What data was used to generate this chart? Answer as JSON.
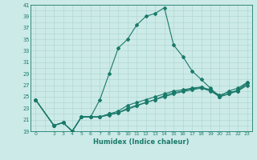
{
  "xlabel": "Humidex (Indice chaleur)",
  "bg_color": "#cceae8",
  "grid_color": "#aad4d0",
  "line_color": "#1a7a6a",
  "xmin": 0,
  "xmax": 23,
  "ymin": 19,
  "ymax": 41,
  "yticks": [
    19,
    21,
    23,
    25,
    27,
    29,
    31,
    33,
    35,
    37,
    39,
    41
  ],
  "xticks": [
    0,
    2,
    3,
    4,
    5,
    6,
    7,
    8,
    9,
    10,
    11,
    12,
    13,
    14,
    15,
    16,
    17,
    18,
    19,
    20,
    21,
    22,
    23
  ],
  "series": [
    [
      24.5,
      null,
      20.0,
      20.5,
      19.0,
      21.5,
      21.5,
      24.5,
      29.0,
      33.5,
      35.0,
      37.5,
      39.0,
      39.5,
      40.5,
      34.0,
      32.0,
      29.5,
      28.0,
      26.5,
      25.0,
      26.0,
      26.5,
      27.5
    ],
    [
      24.5,
      null,
      20.0,
      20.5,
      19.0,
      21.5,
      21.5,
      21.5,
      22.0,
      22.5,
      23.5,
      24.0,
      24.5,
      25.0,
      25.5,
      26.0,
      26.2,
      26.5,
      26.7,
      26.2,
      25.0,
      25.5,
      26.2,
      27.5
    ],
    [
      24.5,
      null,
      20.0,
      20.5,
      19.0,
      21.5,
      21.5,
      21.5,
      22.0,
      22.2,
      23.0,
      23.5,
      24.0,
      24.5,
      25.2,
      25.7,
      26.0,
      26.4,
      26.6,
      26.1,
      25.3,
      25.8,
      26.0,
      27.3
    ],
    [
      24.5,
      null,
      20.0,
      20.5,
      19.0,
      21.5,
      21.5,
      21.5,
      21.8,
      22.2,
      22.8,
      23.4,
      24.0,
      24.5,
      25.0,
      25.5,
      25.9,
      26.2,
      26.5,
      26.0,
      25.0,
      25.5,
      26.0,
      27.0
    ]
  ]
}
